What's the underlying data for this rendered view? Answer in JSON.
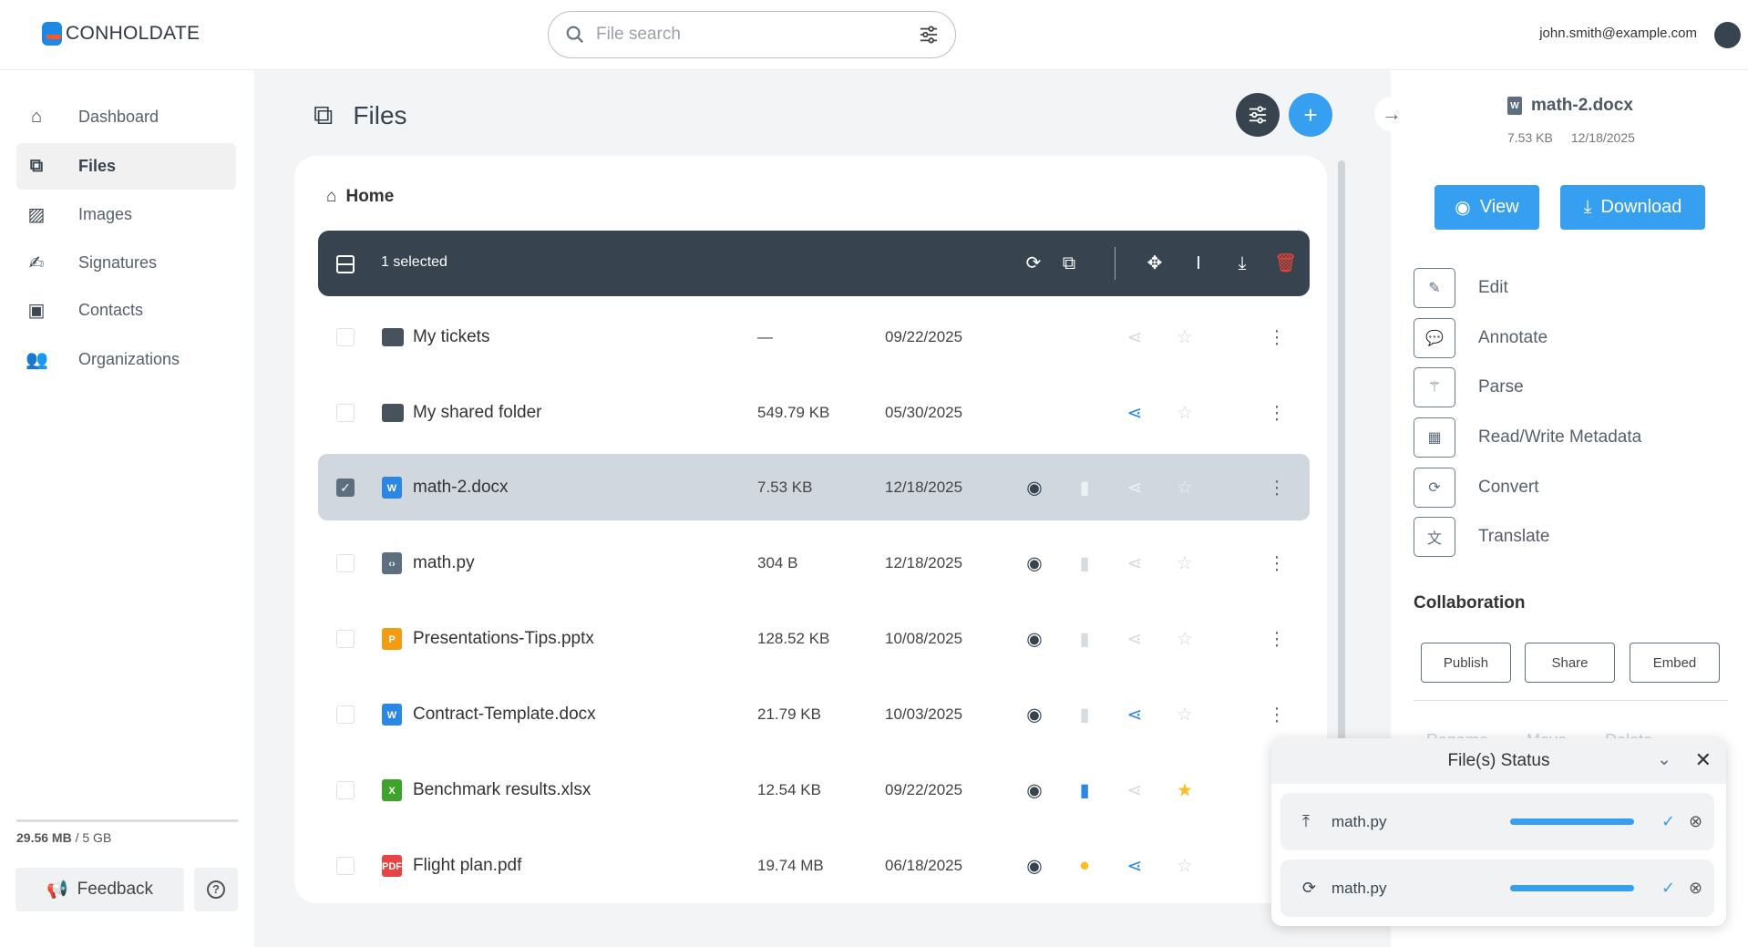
{
  "app": {
    "brand": "CONHOLDATE",
    "user_email": "john.smith@example.com"
  },
  "search": {
    "placeholder": "File search"
  },
  "sidebar": {
    "items": [
      {
        "label": "Dashboard",
        "icon": "home-icon"
      },
      {
        "label": "Files",
        "icon": "files-icon",
        "active": true
      },
      {
        "label": "Images",
        "icon": "image-icon"
      },
      {
        "label": "Signatures",
        "icon": "signature-icon"
      },
      {
        "label": "Contacts",
        "icon": "contact-icon"
      },
      {
        "label": "Organizations",
        "icon": "users-icon"
      }
    ],
    "storage_used": "29.56 MB",
    "storage_total": " / 5 GB",
    "feedback": "Feedback"
  },
  "main": {
    "title": "Files",
    "breadcrumb": "Home",
    "selection": "1 selected",
    "files": [
      {
        "name": "My tickets",
        "type": "folder",
        "size": "—",
        "date": "09/22/2025",
        "shared": false,
        "starred": false,
        "selected": false,
        "preview": false,
        "status": "none"
      },
      {
        "name": "My shared folder",
        "type": "folder",
        "size": "549.79 KB",
        "date": "05/30/2025",
        "shared": true,
        "starred": false,
        "selected": false,
        "preview": false,
        "status": "none"
      },
      {
        "name": "math-2.docx",
        "type": "docx",
        "size": "7.53 KB",
        "date": "12/18/2025",
        "shared": false,
        "starred": false,
        "selected": true,
        "preview": true,
        "status": "idle"
      },
      {
        "name": "math.py",
        "type": "code",
        "size": "304 B",
        "date": "12/18/2025",
        "shared": false,
        "starred": false,
        "selected": false,
        "preview": true,
        "status": "idle"
      },
      {
        "name": "Presentations-Tips.pptx",
        "type": "pptx",
        "size": "128.52 KB",
        "date": "10/08/2025",
        "shared": false,
        "starred": false,
        "selected": false,
        "preview": true,
        "status": "idle"
      },
      {
        "name": "Contract-Template.docx",
        "type": "docx",
        "size": "21.79 KB",
        "date": "10/03/2025",
        "shared": true,
        "starred": false,
        "selected": false,
        "preview": true,
        "status": "idle"
      },
      {
        "name": "Benchmark results.xlsx",
        "type": "xlsx",
        "size": "12.54 KB",
        "date": "09/22/2025",
        "shared": false,
        "starred": true,
        "selected": false,
        "preview": true,
        "status": "processed"
      },
      {
        "name": "Flight plan.pdf",
        "type": "pdf",
        "size": "19.74 MB",
        "date": "06/18/2025",
        "shared": true,
        "starred": false,
        "selected": false,
        "preview": true,
        "status": "pending"
      }
    ]
  },
  "details": {
    "name": "math-2.docx",
    "size": "7.53 KB",
    "date": "12/18/2025",
    "view": "View",
    "download": "Download",
    "actions": [
      "Edit",
      "Annotate",
      "Parse",
      "Read/Write Metadata",
      "Convert",
      "Translate"
    ],
    "collaboration": "Collaboration",
    "collab_buttons": [
      "Publish",
      "Share",
      "Embed"
    ],
    "more": [
      "Rename",
      "Move",
      "Delete"
    ]
  },
  "status_panel": {
    "title": "File(s) Status",
    "items": [
      {
        "op": "upload",
        "name": "math.py",
        "progress": 100
      },
      {
        "op": "convert",
        "name": "math.py",
        "progress": 100
      }
    ]
  },
  "colors": {
    "accent": "#379ff0",
    "toolbar": "#37444f",
    "danger": "#f44336",
    "star": "#fbbf24"
  }
}
